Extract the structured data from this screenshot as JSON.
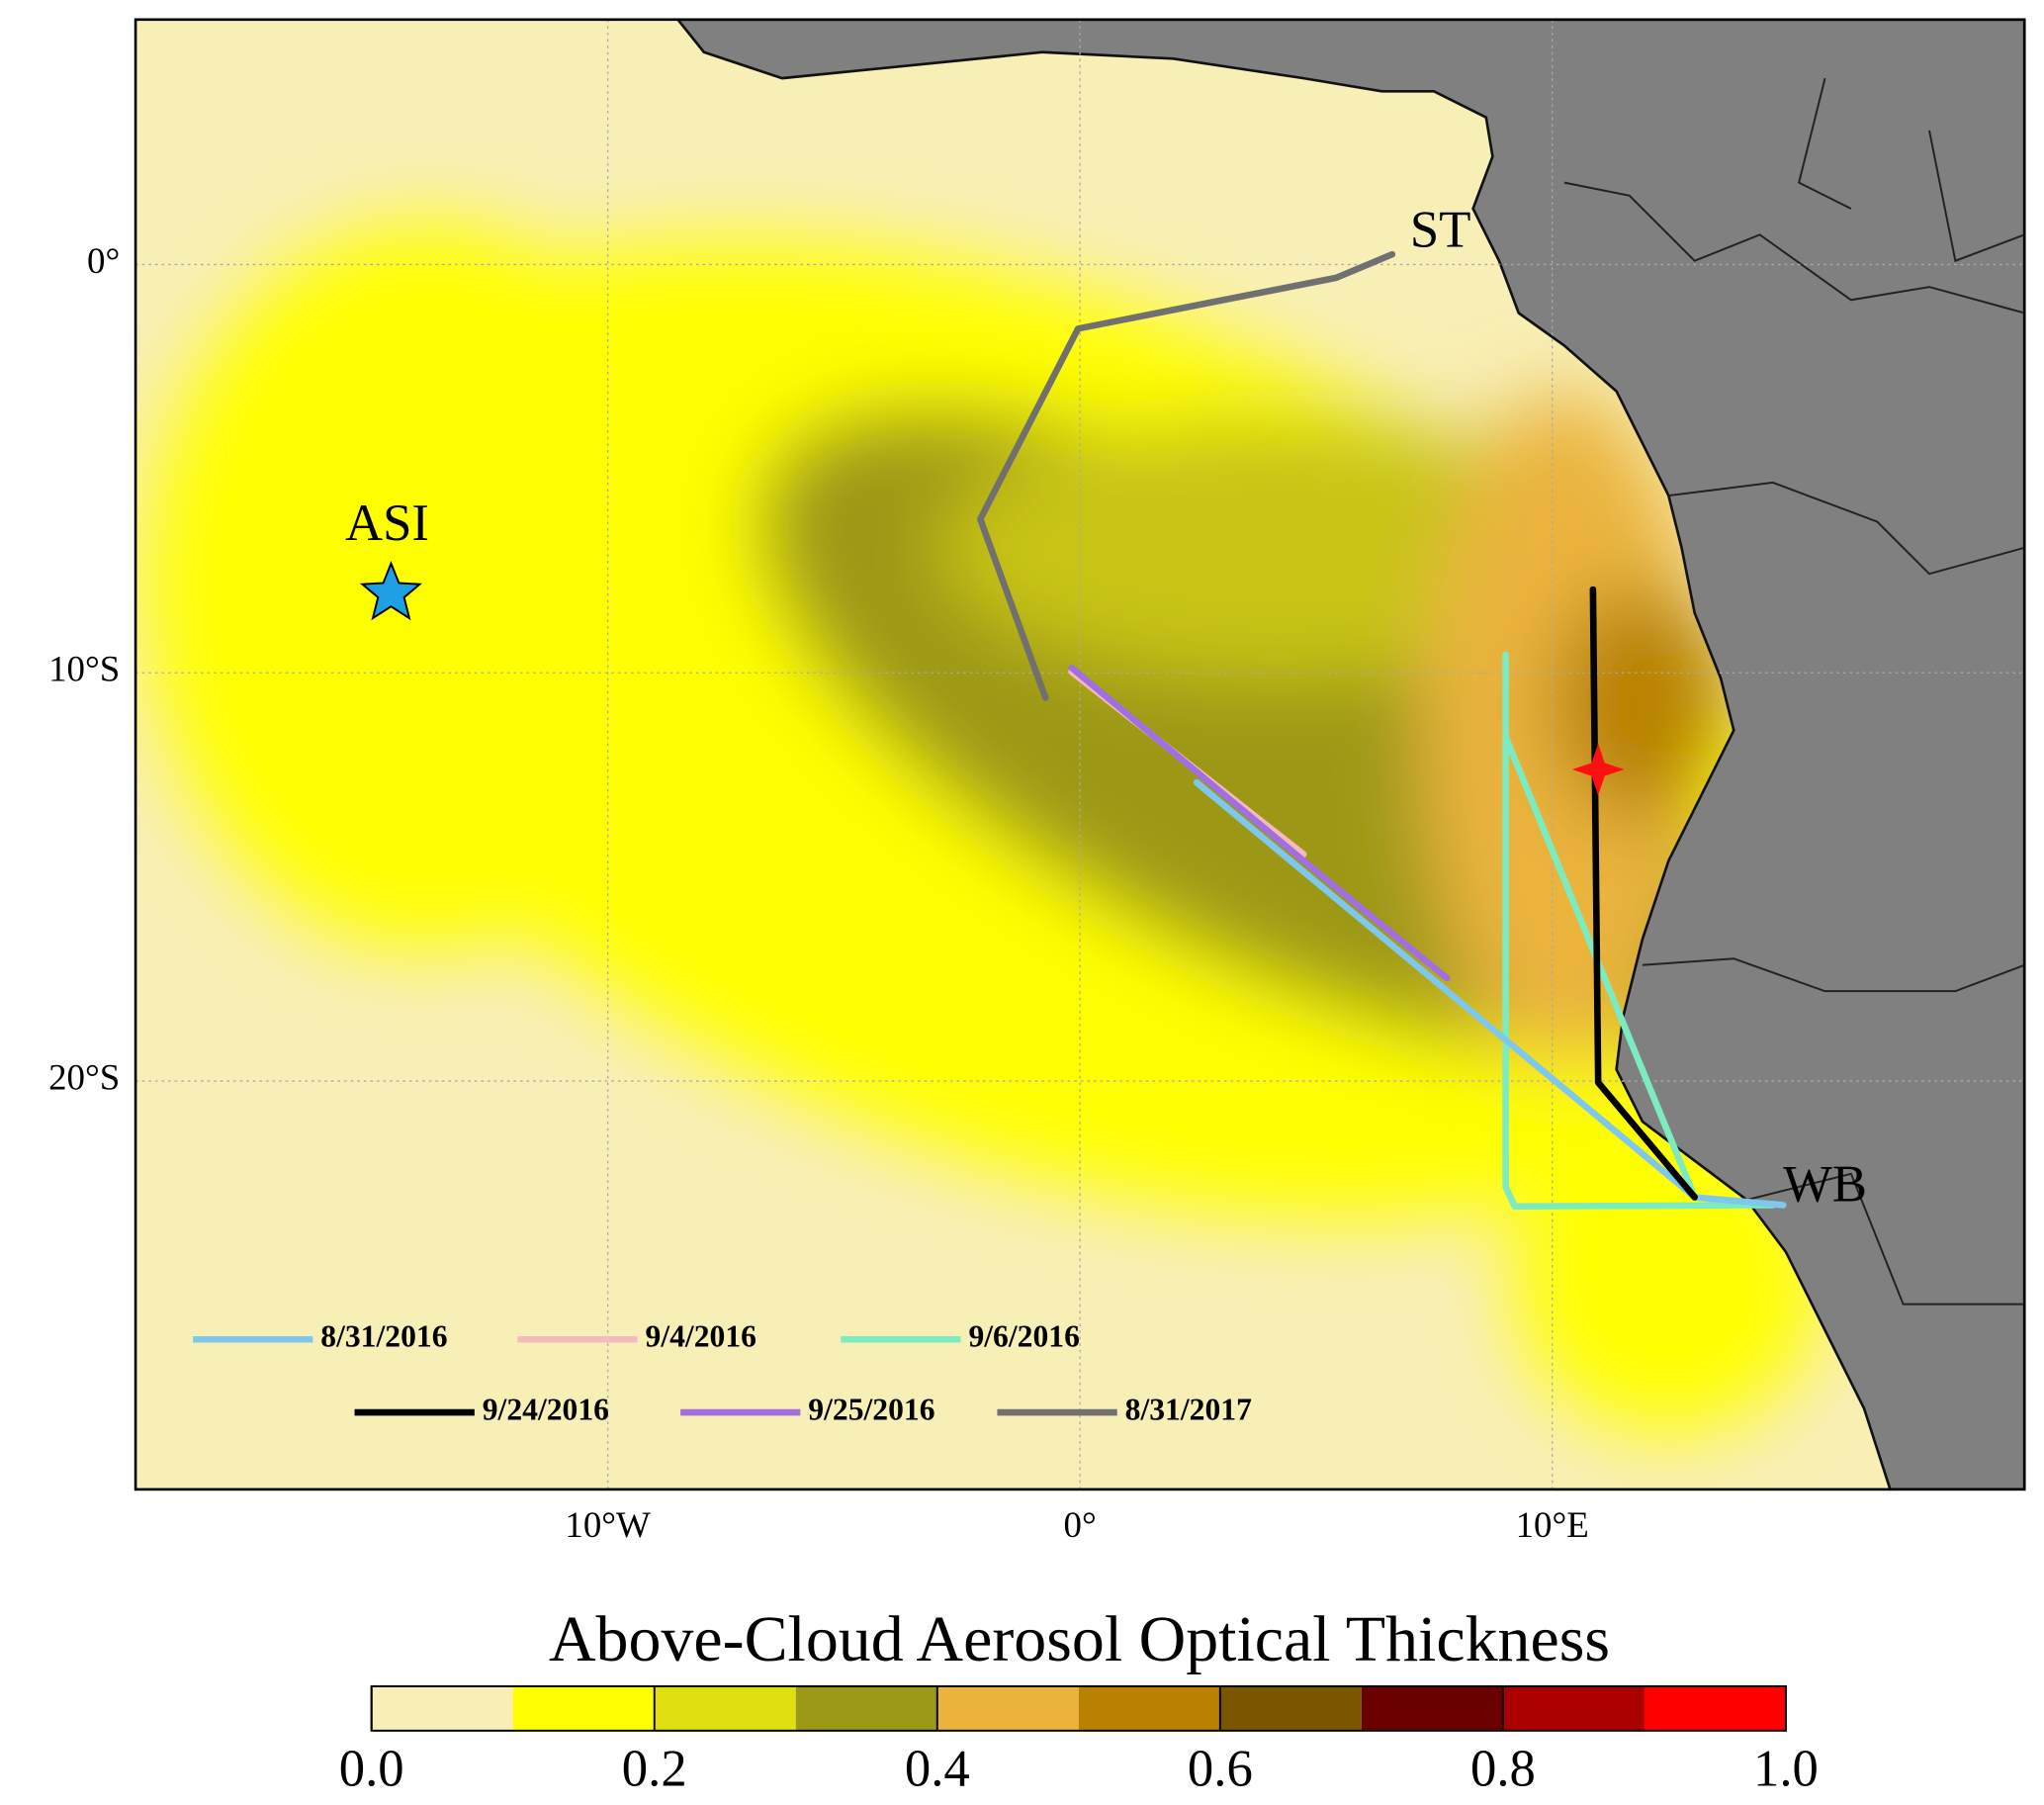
{
  "map": {
    "xlim": [
      -20,
      20
    ],
    "ylim": [
      -30,
      6
    ],
    "lon_ticks": [
      {
        "value": -10,
        "label": "10°W"
      },
      {
        "value": 0,
        "label": "0°"
      },
      {
        "value": 10,
        "label": "10°E"
      }
    ],
    "lat_ticks": [
      {
        "value": 0,
        "label": "0°"
      },
      {
        "value": -10,
        "label": "10°S"
      },
      {
        "value": -20,
        "label": "20°S"
      }
    ],
    "places": [
      "ST",
      "ASI",
      "WB"
    ],
    "legend": [
      {
        "name": "8/31/2016",
        "color": "#7ec8ec"
      },
      {
        "name": "9/4/2016",
        "color": "#f7b8c0"
      },
      {
        "name": "9/6/2016",
        "color": "#7debc0"
      },
      {
        "name": "9/24/2016",
        "color": "#000000"
      },
      {
        "name": "9/25/2016",
        "color": "#a070e0"
      },
      {
        "name": "8/31/2017",
        "color": "#707070"
      }
    ]
  },
  "colorbar": {
    "title": "Above-Cloud Aerosol Optical Thickness",
    "lim": [
      0,
      1
    ],
    "ticks": [
      {
        "value": 0,
        "label": "0.0"
      },
      {
        "value": 0.2,
        "label": "0.2"
      },
      {
        "value": 0.4,
        "label": "0.4"
      },
      {
        "value": 0.6,
        "label": "0.6"
      },
      {
        "value": 0.8,
        "label": "0.8"
      },
      {
        "value": 1,
        "label": "1.0"
      }
    ],
    "colors": [
      "#f8efb6",
      "#ffff00",
      "#e0e010",
      "#9c9818",
      "#eab43c",
      "#b88200",
      "#7a5600",
      "#6a0000",
      "#aa0000",
      "#ff0000"
    ]
  }
}
